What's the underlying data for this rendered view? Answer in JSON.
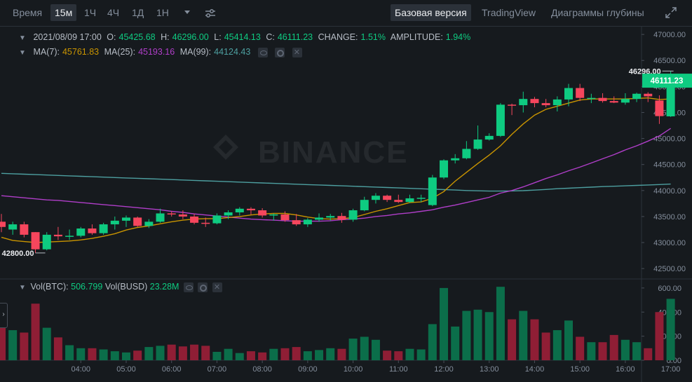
{
  "toolbar": {
    "time_label": "Время",
    "intervals": [
      "15м",
      "1Ч",
      "4Ч",
      "1Д",
      "1Н"
    ],
    "active_interval": "15м",
    "views": [
      "Базовая версия",
      "TradingView",
      "Диаграммы глубины"
    ],
    "active_view": "Базовая версия"
  },
  "ohlc": {
    "date": "2021/08/09 17:00",
    "o_label": "O:",
    "o": "45425.68",
    "h_label": "H:",
    "h": "46296.00",
    "l_label": "L:",
    "l": "45414.13",
    "c_label": "C:",
    "c": "46111.23",
    "change_label": "CHANGE:",
    "change": "1.51%",
    "amplitude_label": "AMPLITUDE:",
    "amplitude": "1.94%"
  },
  "ma": {
    "ma7_label": "MA(7):",
    "ma7": "45761.83",
    "ma25_label": "MA(25):",
    "ma25": "45193.16",
    "ma99_label": "MA(99):",
    "ma99": "44124.43"
  },
  "volume": {
    "btc_label": "Vol(BTC):",
    "btc": "506.799",
    "busd_label": "Vol(BUSD)",
    "busd": "23.28M"
  },
  "watermark": "BINANCE",
  "price_axis": [
    "47000.00",
    "46500.00",
    "46000.00",
    "45500.00",
    "45000.00",
    "44500.00",
    "44000.00",
    "43500.00",
    "43000.00",
    "42500.00"
  ],
  "volume_axis": [
    "600.00",
    "400.00",
    "200.00",
    "0.00"
  ],
  "time_axis": [
    "04:00",
    "05:00",
    "06:00",
    "07:00",
    "08:00",
    "09:00",
    "10:00",
    "11:00",
    "12:00",
    "13:00",
    "14:00",
    "15:00",
    "16:00",
    "17:00"
  ],
  "current_price": "46111.23",
  "high_marker": "46296.00",
  "low_marker": "42800.00",
  "colors": {
    "up": "#0ecb81",
    "down": "#f6465d",
    "ma7": "#c99400",
    "ma25": "#b03ec9",
    "ma99": "#4d9fa0",
    "bg": "#161a1e",
    "grid": "#2b3139"
  },
  "chart_data": {
    "type": "candlestick",
    "price_ylim": [
      42300,
      47150
    ],
    "volume_ylim": [
      0,
      640
    ],
    "candles": [
      {
        "o": 43400,
        "h": 43550,
        "l": 43200,
        "c": 43300
      },
      {
        "o": 43250,
        "h": 43400,
        "l": 43150,
        "c": 43350
      },
      {
        "o": 43350,
        "h": 43400,
        "l": 43100,
        "c": 43150
      },
      {
        "o": 43200,
        "h": 43200,
        "l": 42800,
        "c": 42870
      },
      {
        "o": 42870,
        "h": 43200,
        "l": 42850,
        "c": 43150
      },
      {
        "o": 43150,
        "h": 43300,
        "l": 43050,
        "c": 43120
      },
      {
        "o": 43120,
        "h": 43250,
        "l": 43050,
        "c": 43130
      },
      {
        "o": 43130,
        "h": 43300,
        "l": 43100,
        "c": 43270
      },
      {
        "o": 43270,
        "h": 43350,
        "l": 43150,
        "c": 43180
      },
      {
        "o": 43180,
        "h": 43380,
        "l": 43150,
        "c": 43350
      },
      {
        "o": 43350,
        "h": 43500,
        "l": 43250,
        "c": 43420
      },
      {
        "o": 43420,
        "h": 43520,
        "l": 43300,
        "c": 43480
      },
      {
        "o": 43480,
        "h": 43500,
        "l": 43300,
        "c": 43320
      },
      {
        "o": 43320,
        "h": 43450,
        "l": 43280,
        "c": 43400
      },
      {
        "o": 43400,
        "h": 43650,
        "l": 43380,
        "c": 43560
      },
      {
        "o": 43560,
        "h": 43600,
        "l": 43500,
        "c": 43540
      },
      {
        "o": 43540,
        "h": 43620,
        "l": 43450,
        "c": 43500
      },
      {
        "o": 43500,
        "h": 43550,
        "l": 43350,
        "c": 43380
      },
      {
        "o": 43380,
        "h": 43480,
        "l": 43300,
        "c": 43370
      },
      {
        "o": 43370,
        "h": 43560,
        "l": 43350,
        "c": 43520
      },
      {
        "o": 43520,
        "h": 43620,
        "l": 43450,
        "c": 43580
      },
      {
        "o": 43580,
        "h": 43680,
        "l": 43520,
        "c": 43650
      },
      {
        "o": 43650,
        "h": 43680,
        "l": 43540,
        "c": 43620
      },
      {
        "o": 43620,
        "h": 43660,
        "l": 43480,
        "c": 43520
      },
      {
        "o": 43520,
        "h": 43560,
        "l": 43420,
        "c": 43540
      },
      {
        "o": 43540,
        "h": 43600,
        "l": 43400,
        "c": 43430
      },
      {
        "o": 43430,
        "h": 43550,
        "l": 43320,
        "c": 43350
      },
      {
        "o": 43350,
        "h": 43470,
        "l": 43300,
        "c": 43440
      },
      {
        "o": 43440,
        "h": 43560,
        "l": 43400,
        "c": 43480
      },
      {
        "o": 43480,
        "h": 43550,
        "l": 43420,
        "c": 43510
      },
      {
        "o": 43510,
        "h": 43570,
        "l": 43380,
        "c": 43440
      },
      {
        "o": 43440,
        "h": 43650,
        "l": 43400,
        "c": 43620
      },
      {
        "o": 43620,
        "h": 43880,
        "l": 43600,
        "c": 43820
      },
      {
        "o": 43820,
        "h": 43950,
        "l": 43750,
        "c": 43900
      },
      {
        "o": 43900,
        "h": 43920,
        "l": 43780,
        "c": 43820
      },
      {
        "o": 43820,
        "h": 43920,
        "l": 43760,
        "c": 43780
      },
      {
        "o": 43780,
        "h": 43920,
        "l": 43760,
        "c": 43850
      },
      {
        "o": 43850,
        "h": 43920,
        "l": 43780,
        "c": 43860
      },
      {
        "o": 43720,
        "h": 44300,
        "l": 43700,
        "c": 44250
      },
      {
        "o": 44250,
        "h": 44600,
        "l": 44220,
        "c": 44580
      },
      {
        "o": 44580,
        "h": 44700,
        "l": 44520,
        "c": 44620
      },
      {
        "o": 44620,
        "h": 44950,
        "l": 44600,
        "c": 44800
      },
      {
        "o": 44800,
        "h": 45250,
        "l": 44780,
        "c": 44980
      },
      {
        "o": 44980,
        "h": 45100,
        "l": 44960,
        "c": 45050
      },
      {
        "o": 45050,
        "h": 45680,
        "l": 45030,
        "c": 45650
      },
      {
        "o": 45650,
        "h": 45670,
        "l": 45450,
        "c": 45640
      },
      {
        "o": 45640,
        "h": 45900,
        "l": 45500,
        "c": 45760
      },
      {
        "o": 45760,
        "h": 45800,
        "l": 45600,
        "c": 45680
      },
      {
        "o": 45680,
        "h": 45760,
        "l": 45600,
        "c": 45640
      },
      {
        "o": 45640,
        "h": 45810,
        "l": 45520,
        "c": 45750
      },
      {
        "o": 45750,
        "h": 46050,
        "l": 45620,
        "c": 45970
      },
      {
        "o": 45970,
        "h": 46050,
        "l": 45720,
        "c": 45780
      },
      {
        "o": 45780,
        "h": 45860,
        "l": 45680,
        "c": 45780
      },
      {
        "o": 45780,
        "h": 45870,
        "l": 45690,
        "c": 45720
      },
      {
        "o": 45720,
        "h": 45810,
        "l": 45680,
        "c": 45690
      },
      {
        "o": 45690,
        "h": 45870,
        "l": 45650,
        "c": 45760
      },
      {
        "o": 45760,
        "h": 45880,
        "l": 45700,
        "c": 45860
      },
      {
        "o": 45860,
        "h": 45890,
        "l": 45700,
        "c": 45810
      },
      {
        "o": 45730,
        "h": 45830,
        "l": 45280,
        "c": 45430
      },
      {
        "o": 45425.68,
        "h": 46296,
        "l": 45414.13,
        "c": 46111.23
      }
    ],
    "volumes": [
      270,
      250,
      230,
      470,
      270,
      190,
      125,
      100,
      100,
      90,
      75,
      65,
      80,
      110,
      120,
      130,
      115,
      130,
      120,
      70,
      95,
      60,
      75,
      65,
      95,
      100,
      110,
      75,
      85,
      100,
      95,
      180,
      195,
      170,
      80,
      75,
      95,
      90,
      300,
      600,
      280,
      410,
      420,
      400,
      610,
      340,
      410,
      340,
      230,
      250,
      330,
      195,
      150,
      150,
      210,
      170,
      150,
      100,
      400,
      510
    ],
    "ma7": [
      43100,
      43040,
      43020,
      43000,
      43010,
      43020,
      43030,
      43050,
      43080,
      43120,
      43170,
      43240,
      43290,
      43320,
      43360,
      43400,
      43430,
      43450,
      43460,
      43460,
      43480,
      43500,
      43530,
      43550,
      43560,
      43560,
      43530,
      43490,
      43460,
      43450,
      43460,
      43480,
      43540,
      43600,
      43650,
      43710,
      43770,
      43780,
      43850,
      43980,
      44180,
      44350,
      44520,
      44680,
      44860,
      45080,
      45280,
      45450,
      45560,
      45620,
      45680,
      45740,
      45760,
      45760,
      45760,
      45760,
      45770,
      45780,
      45750,
      45760
    ],
    "ma25": [
      43900,
      43880,
      43860,
      43840,
      43820,
      43810,
      43790,
      43770,
      43750,
      43730,
      43710,
      43690,
      43670,
      43650,
      43630,
      43600,
      43580,
      43550,
      43530,
      43510,
      43490,
      43470,
      43450,
      43440,
      43430,
      43420,
      43410,
      43410,
      43410,
      43420,
      43440,
      43450,
      43470,
      43500,
      43520,
      43550,
      43570,
      43600,
      43630,
      43680,
      43720,
      43770,
      43820,
      43870,
      43950,
      44000,
      44070,
      44150,
      44230,
      44300,
      44380,
      44450,
      44530,
      44610,
      44690,
      44780,
      44860,
      44950,
      45050,
      45193.16
    ],
    "ma99": [
      44330,
      44322,
      44314,
      44306,
      44298,
      44290,
      44282,
      44274,
      44266,
      44258,
      44250,
      44242,
      44234,
      44226,
      44218,
      44210,
      44202,
      44194,
      44186,
      44178,
      44170,
      44162,
      44154,
      44146,
      44138,
      44130,
      44122,
      44114,
      44106,
      44098,
      44090,
      44082,
      44074,
      44066,
      44058,
      44050,
      44042,
      44034,
      44026,
      44018,
      44010,
      44000,
      43995,
      43990,
      43990,
      43992,
      43998,
      44008,
      44020,
      44035,
      44045,
      44055,
      44065,
      44075,
      44082,
      44090,
      44098,
      44106,
      44115,
      44124.43
    ]
  }
}
